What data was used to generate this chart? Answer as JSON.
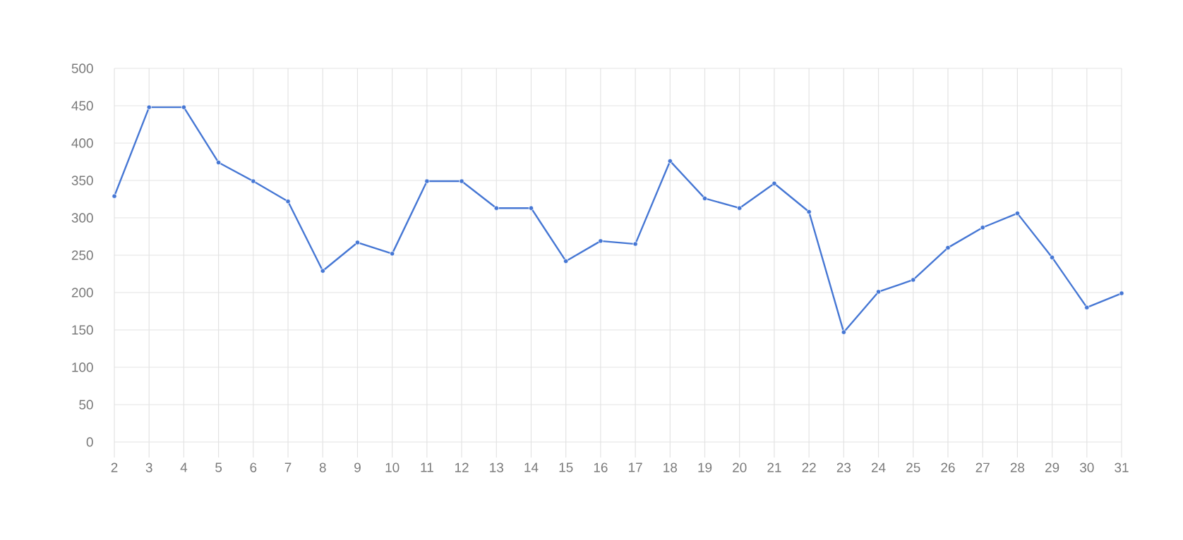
{
  "chart_data": {
    "type": "line",
    "categories": [
      "2",
      "3",
      "4",
      "5",
      "6",
      "7",
      "8",
      "9",
      "10",
      "11",
      "12",
      "13",
      "14",
      "15",
      "16",
      "17",
      "18",
      "19",
      "20",
      "21",
      "22",
      "23",
      "24",
      "25",
      "26",
      "27",
      "28",
      "29",
      "30",
      "31"
    ],
    "series": [
      {
        "color": "#4677d4",
        "values": [
          329,
          448,
          448,
          374,
          349,
          322,
          229,
          267,
          252,
          349,
          349,
          313,
          313,
          242,
          269,
          265,
          376,
          326,
          313,
          346,
          308,
          147,
          201,
          217,
          260,
          287,
          306,
          247,
          180,
          199
        ]
      }
    ],
    "ylim": [
      0,
      500
    ],
    "yticks": [
      0,
      50,
      100,
      150,
      200,
      250,
      300,
      350,
      400,
      450,
      500
    ],
    "grid": true,
    "marker": "circle",
    "line_style": "solid"
  }
}
